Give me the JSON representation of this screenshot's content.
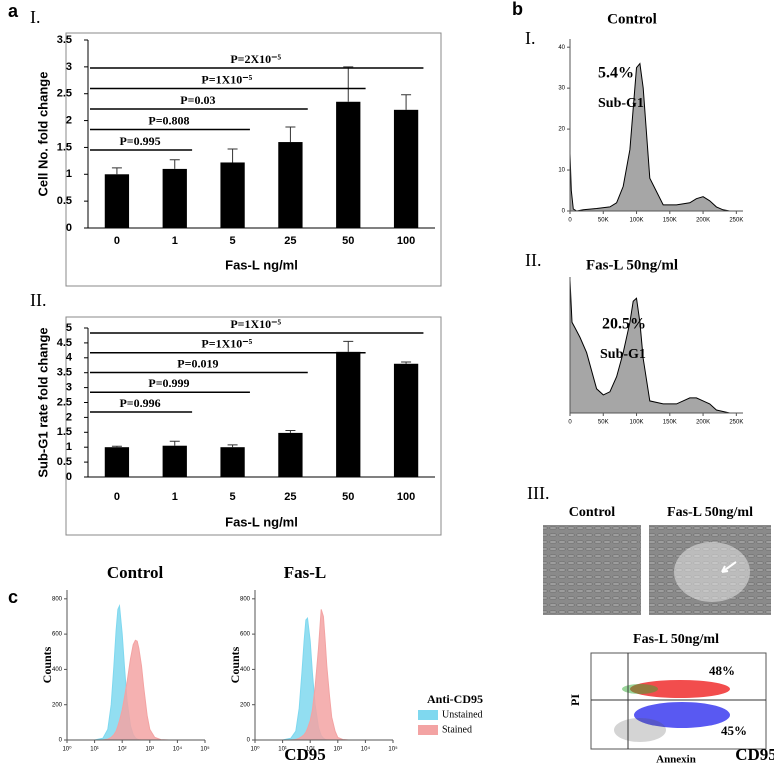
{
  "panel_labels": {
    "a": "a",
    "b": "b",
    "c": "c"
  },
  "chart_data": [
    {
      "type": "bar",
      "label": "I.",
      "categories": [
        "0",
        "1",
        "5",
        "25",
        "50",
        "100"
      ],
      "values": [
        1.0,
        1.1,
        1.22,
        1.6,
        2.35,
        2.2
      ],
      "errors": [
        0.12,
        0.17,
        0.25,
        0.28,
        0.65,
        0.28
      ],
      "color": "#000000",
      "ylim": [
        0,
        3.5
      ],
      "yticks": [
        0,
        0.5,
        1,
        1.5,
        2,
        2.5,
        3,
        3.5
      ],
      "xlabel": "Fas-L ng/ml",
      "ylabel": "Cell No. fold change",
      "brackets": [
        "P=0.995",
        "P=0.808",
        "P=0.03",
        "P=1X10⁻⁵",
        "P=2X10⁻⁵"
      ]
    },
    {
      "type": "bar",
      "label": "II.",
      "categories": [
        "0",
        "1",
        "5",
        "25",
        "50",
        "100"
      ],
      "values": [
        1.0,
        1.05,
        1.0,
        1.48,
        4.2,
        3.8
      ],
      "errors": [
        0.03,
        0.15,
        0.08,
        0.08,
        0.35,
        0.06
      ],
      "color": "#000000",
      "ylim": [
        0,
        5
      ],
      "yticks": [
        0,
        0.5,
        1,
        1.5,
        2,
        2.5,
        3,
        3.5,
        4,
        4.5,
        5
      ],
      "xlabel": "Fas-L ng/ml",
      "ylabel": "Sub-G1 rate fold change",
      "brackets": [
        "P=0.996",
        "P=0.999",
        "P=0.019",
        "P=1X10⁻⁵",
        "P=1X10⁻⁵"
      ]
    },
    {
      "type": "area",
      "label": "I.",
      "title": "Control",
      "x": [
        0,
        2000,
        5000,
        10000,
        20000,
        40000,
        60000,
        70000,
        80000,
        90000,
        95000,
        100000,
        105000,
        110000,
        120000,
        140000,
        160000,
        180000,
        190000,
        200000,
        210000,
        220000,
        230000,
        240000,
        250000
      ],
      "values": [
        14,
        5,
        0.5,
        0,
        0.3,
        0.6,
        1,
        2,
        6,
        15,
        25,
        35,
        36,
        30,
        8,
        1.5,
        1.5,
        2,
        3,
        3.5,
        2.5,
        1,
        0.3,
        0,
        0
      ],
      "color": "#a6a6a6",
      "xlim": [
        0,
        260000
      ],
      "ylim": [
        0,
        42
      ],
      "xticks": [
        0,
        {
          "value": 50000,
          "label": "50K"
        },
        {
          "value": 100000,
          "label": "100K"
        },
        {
          "value": 150000,
          "label": "150K"
        },
        {
          "value": 200000,
          "label": "200K"
        },
        {
          "value": 250000,
          "label": "250K"
        }
      ],
      "yticks": [
        0,
        10,
        20,
        30,
        40
      ],
      "annotations": [
        "5.4%",
        "Sub-G1"
      ]
    },
    {
      "type": "area",
      "label": "II.",
      "title": "Fas-L 50ng/ml",
      "x": [
        0,
        3000,
        8000,
        15000,
        25000,
        40000,
        50000,
        60000,
        70000,
        80000,
        90000,
        95000,
        100000,
        105000,
        110000,
        120000,
        140000,
        160000,
        170000,
        180000,
        190000,
        200000,
        210000,
        220000,
        240000,
        250000
      ],
      "values": [
        44,
        30,
        28,
        25,
        20,
        8,
        6,
        7,
        12,
        20,
        30,
        37,
        38,
        30,
        18,
        4,
        3,
        3,
        4,
        5,
        5,
        4,
        3,
        1,
        0,
        0
      ],
      "color": "#a6a6a6",
      "xlim": [
        0,
        260000
      ],
      "ylim": [
        0,
        45
      ],
      "xticks": [
        0,
        {
          "value": 50000,
          "label": "50K"
        },
        {
          "value": 100000,
          "label": "100K"
        },
        {
          "value": 150000,
          "label": "150K"
        },
        {
          "value": 200000,
          "label": "200K"
        },
        {
          "value": 250000,
          "label": "250K"
        }
      ],
      "annotations": [
        "20.5%",
        "Sub-G1"
      ]
    },
    {
      "type": "area",
      "title": "Control",
      "xscale": "log",
      "x": [
        10,
        20,
        30,
        40,
        50,
        60,
        70,
        80,
        100,
        120,
        150,
        200,
        250,
        300,
        350,
        400,
        500,
        600,
        800,
        1000,
        1500,
        2500,
        5000
      ],
      "series": [
        {
          "color": "#7fd8ef",
          "values": [
            0,
            10,
            60,
            200,
            420,
            620,
            740,
            760,
            600,
            420,
            220,
            80,
            30,
            12,
            5,
            2,
            0,
            0,
            0,
            0,
            0,
            0,
            0
          ]
        },
        {
          "color": "#f3a3a3",
          "values": [
            0,
            0,
            5,
            15,
            30,
            50,
            80,
            110,
            170,
            240,
            330,
            460,
            540,
            565,
            560,
            520,
            420,
            300,
            140,
            60,
            15,
            2,
            0
          ]
        }
      ],
      "xlim": [
        1,
        100000
      ],
      "ylim": [
        0,
        850
      ],
      "xticks": [
        {
          "value": 1,
          "label": "10⁰"
        },
        {
          "value": 10,
          "label": "10¹"
        },
        {
          "value": 100,
          "label": "10²"
        },
        {
          "value": 1000,
          "label": "10³"
        },
        {
          "value": 10000,
          "label": "10⁴"
        },
        {
          "value": 100000,
          "label": "10⁵"
        }
      ],
      "yticks": [
        0,
        200,
        400,
        600,
        800
      ],
      "xlabel": "CD95",
      "ylabel": "Counts"
    },
    {
      "type": "area",
      "title": "Fas-L",
      "xscale": "log",
      "x": [
        10,
        20,
        30,
        40,
        50,
        60,
        70,
        80,
        100,
        120,
        150,
        200,
        250,
        300,
        350,
        400,
        500,
        600,
        800,
        1000,
        1500,
        2500,
        5000
      ],
      "series": [
        {
          "name": "Unstained",
          "color": "#7fd8ef",
          "values": [
            0,
            10,
            50,
            180,
            380,
            560,
            680,
            690,
            560,
            380,
            200,
            70,
            25,
            10,
            4,
            1,
            0,
            0,
            0,
            0,
            0,
            0,
            0
          ]
        },
        {
          "name": "Stained",
          "color": "#f3a3a3",
          "values": [
            0,
            0,
            3,
            10,
            20,
            30,
            45,
            65,
            110,
            170,
            300,
            520,
            740,
            700,
            560,
            420,
            250,
            130,
            50,
            15,
            3,
            0,
            0
          ]
        }
      ],
      "xlim": [
        1,
        100000
      ],
      "ylim": [
        0,
        850
      ],
      "xticks": [
        {
          "value": 1,
          "label": "10⁰"
        },
        {
          "value": 10,
          "label": "10¹"
        },
        {
          "value": 100,
          "label": "10²"
        },
        {
          "value": 1000,
          "label": "10³"
        },
        {
          "value": 10000,
          "label": "10⁴"
        },
        {
          "value": 100000,
          "label": "10⁵"
        }
      ],
      "yticks": [
        0,
        200,
        400,
        600,
        800
      ],
      "xlabel": "CD95",
      "ylabel": "Counts",
      "legend_title": "Anti-CD95"
    }
  ],
  "micrographs": {
    "label": "III.",
    "titles": [
      "Control",
      "Fas-L 50ng/ml"
    ]
  },
  "annexin_plot": {
    "title": "Fas-L 50ng/ml",
    "xlabel": "Annexin",
    "ylabel": "PI",
    "quadrants": [
      "48%",
      "45%"
    ]
  }
}
